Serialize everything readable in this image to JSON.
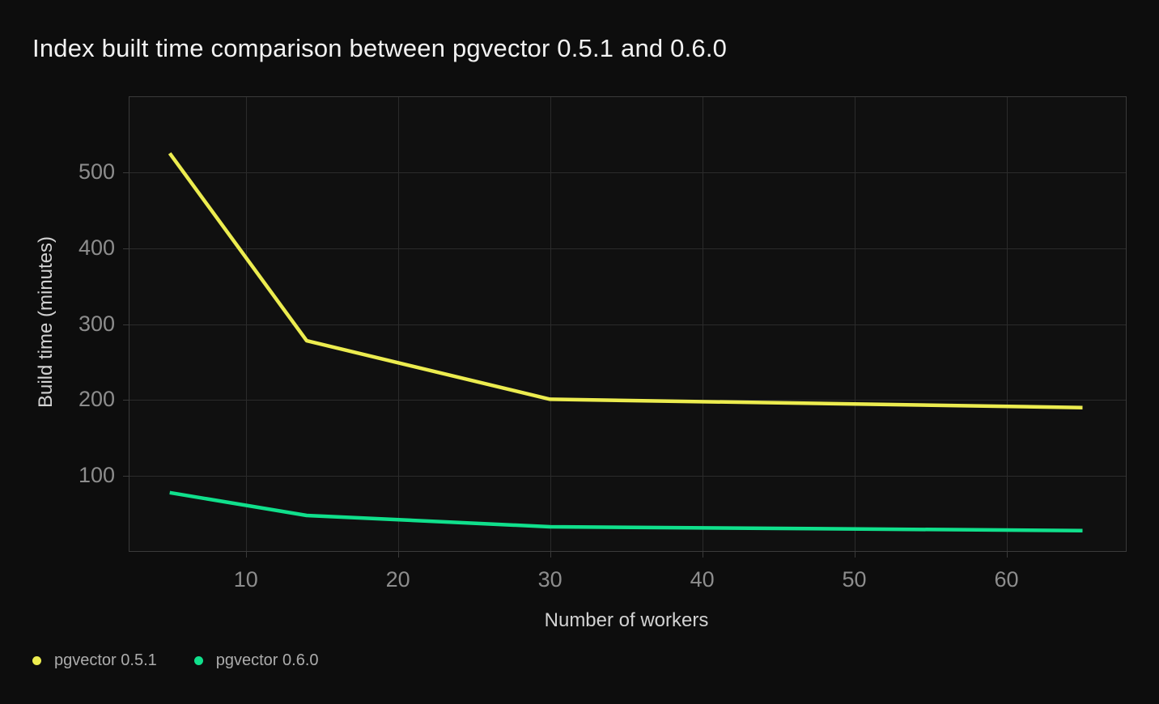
{
  "chart_data": {
    "type": "line",
    "title": "Index built time comparison between pgvector 0.5.1 and 0.6.0",
    "xlabel": "Number of workers",
    "ylabel": "Build time (minutes)",
    "x_ticks": [
      10,
      20,
      30,
      40,
      50,
      60
    ],
    "y_ticks": [
      100,
      200,
      300,
      400,
      500
    ],
    "xlim": [
      2.3,
      67.9
    ],
    "ylim": [
      0,
      600
    ],
    "grid": true,
    "legend_position": "bottom-left",
    "series": [
      {
        "name": "pgvector 0.5.1",
        "color": "#ecec4f",
        "x": [
          5,
          14,
          30,
          65
        ],
        "y": [
          525,
          278,
          201,
          190
        ]
      },
      {
        "name": "pgvector 0.6.0",
        "color": "#10e08c",
        "x": [
          5,
          14,
          30,
          65
        ],
        "y": [
          78,
          48,
          33,
          28
        ]
      }
    ],
    "colors": {
      "background": "#0d0d0d",
      "plot_background": "#101010",
      "grid": "#2b2b2b",
      "border": "#3a3a3a",
      "tick_label": "#8d8d8d",
      "axis_label": "#d2d2d2",
      "title": "#f2f2f2",
      "legend_text": "#acacac"
    }
  }
}
